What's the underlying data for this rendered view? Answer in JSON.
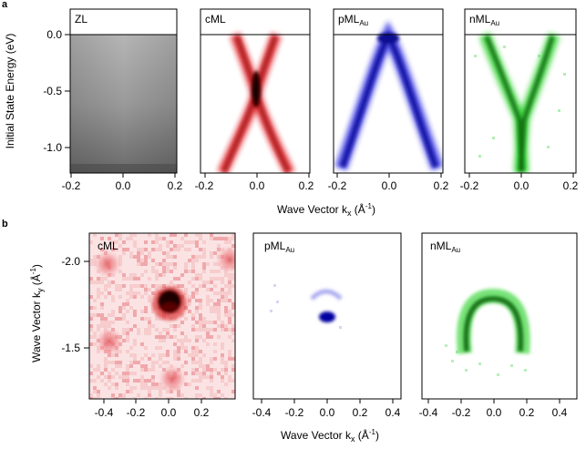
{
  "figure": {
    "panel_labels": [
      "a",
      "b"
    ],
    "row_a": {
      "y_axis_label": "Initial State Energy (eV)",
      "x_axis_label_main": "Wave Vector k",
      "x_axis_label_sub": "x",
      "x_axis_label_unit": " (Å",
      "x_axis_label_unit_sup": "-1",
      "x_axis_label_close": ")",
      "y_ticks": [
        "0.0",
        "-0.5",
        "-1.0"
      ],
      "x_ticks": [
        "-0.2",
        "0.0",
        "0.2"
      ],
      "panels": [
        {
          "label": "ZL",
          "sub": ""
        },
        {
          "label": "cML",
          "sub": ""
        },
        {
          "label": "pML",
          "sub": "Au"
        },
        {
          "label": "nML",
          "sub": "Au"
        }
      ]
    },
    "row_b": {
      "y_axis_label_main": "Wave Vector k",
      "y_axis_label_sub": "y",
      "y_axis_label_unit": " (Å",
      "y_axis_label_unit_sup": "-1",
      "y_axis_label_close": ")",
      "x_axis_label_main": "Wave Vector k",
      "x_axis_label_sub": "x",
      "x_axis_label_unit": " (Å",
      "x_axis_label_unit_sup": "-1",
      "x_axis_label_close": ")",
      "y_ticks": [
        "-2.0",
        "-1.5"
      ],
      "x_ticks_first": [
        "-0.4",
        "-0.2",
        "0.0",
        "0.2"
      ],
      "x_ticks": [
        "-0.4",
        "-0.2",
        "0.0",
        "0.2",
        "0.4"
      ],
      "panels": [
        {
          "label": "cML",
          "sub": ""
        },
        {
          "label": "pML",
          "sub": "Au"
        },
        {
          "label": "nML",
          "sub": "Au"
        }
      ]
    },
    "colors": {
      "gray": "#6e6e6e",
      "red": "#e0101c",
      "blue": "#1a1ad8",
      "green": "#10c010",
      "axis": "#000000"
    }
  },
  "chart_data": [
    {
      "type": "heatmap",
      "panel": "ZL",
      "xlabel": "Wave Vector kx (Å-1)",
      "ylabel": "Initial State Energy (eV)",
      "xlim": [
        -0.2,
        0.2
      ],
      "ylim": [
        -1.2,
        0.1
      ],
      "description_of_features": "uniform gray intensity below 0.0 eV"
    },
    {
      "type": "heatmap",
      "panel": "cML",
      "xlim": [
        -0.2,
        0.2
      ],
      "ylim": [
        -1.2,
        0.1
      ],
      "dirac_point_eV": -0.42,
      "branches": [
        {
          "k_at_0eV": -0.08,
          "k_at_-1.2eV": 0.12
        },
        {
          "k_at_0eV": 0.08,
          "k_at_-1.2eV": -0.12
        }
      ]
    },
    {
      "type": "heatmap",
      "panel": "pMLAu",
      "xlim": [
        -0.2,
        0.2
      ],
      "ylim": [
        -1.2,
        0.1
      ],
      "apex_eV": 0.0,
      "branches": [
        {
          "k_at_apex": 0.0,
          "k_at_-1.1eV": -0.17
        },
        {
          "k_at_apex": 0.0,
          "k_at_-1.1eV": 0.17
        }
      ]
    },
    {
      "type": "heatmap",
      "panel": "nMLAu",
      "xlim": [
        -0.2,
        0.2
      ],
      "ylim": [
        -1.2,
        0.1
      ],
      "dirac_point_eV": -0.68,
      "branches": [
        {
          "k_at_0eV": -0.13,
          "k_at_dirac": 0.0
        },
        {
          "k_at_0eV": 0.11,
          "k_at_dirac": 0.0
        }
      ]
    },
    {
      "type": "heatmap",
      "panel": "cML (k-space)",
      "xlim": [
        -0.45,
        0.35
      ],
      "ylim": [
        -2.3,
        -1.25
      ],
      "spots": [
        [
          0.0,
          -1.75
        ],
        [
          -0.38,
          -1.9
        ],
        [
          0.33,
          -1.9
        ],
        [
          -0.38,
          -1.55
        ],
        [
          0.02,
          -1.4
        ]
      ]
    },
    {
      "type": "heatmap",
      "panel": "pMLAu (k-space)",
      "xlim": [
        -0.45,
        0.45
      ],
      "ylim": [
        -2.3,
        -1.25
      ],
      "spots": [
        [
          0.0,
          -1.69
        ]
      ]
    },
    {
      "type": "heatmap",
      "panel": "nMLAu (k-space)",
      "xlim": [
        -0.45,
        0.45
      ],
      "ylim": [
        -2.3,
        -1.25
      ],
      "arc_center": [
        0.0,
        -1.68
      ],
      "arc_radius": 0.17
    }
  ]
}
